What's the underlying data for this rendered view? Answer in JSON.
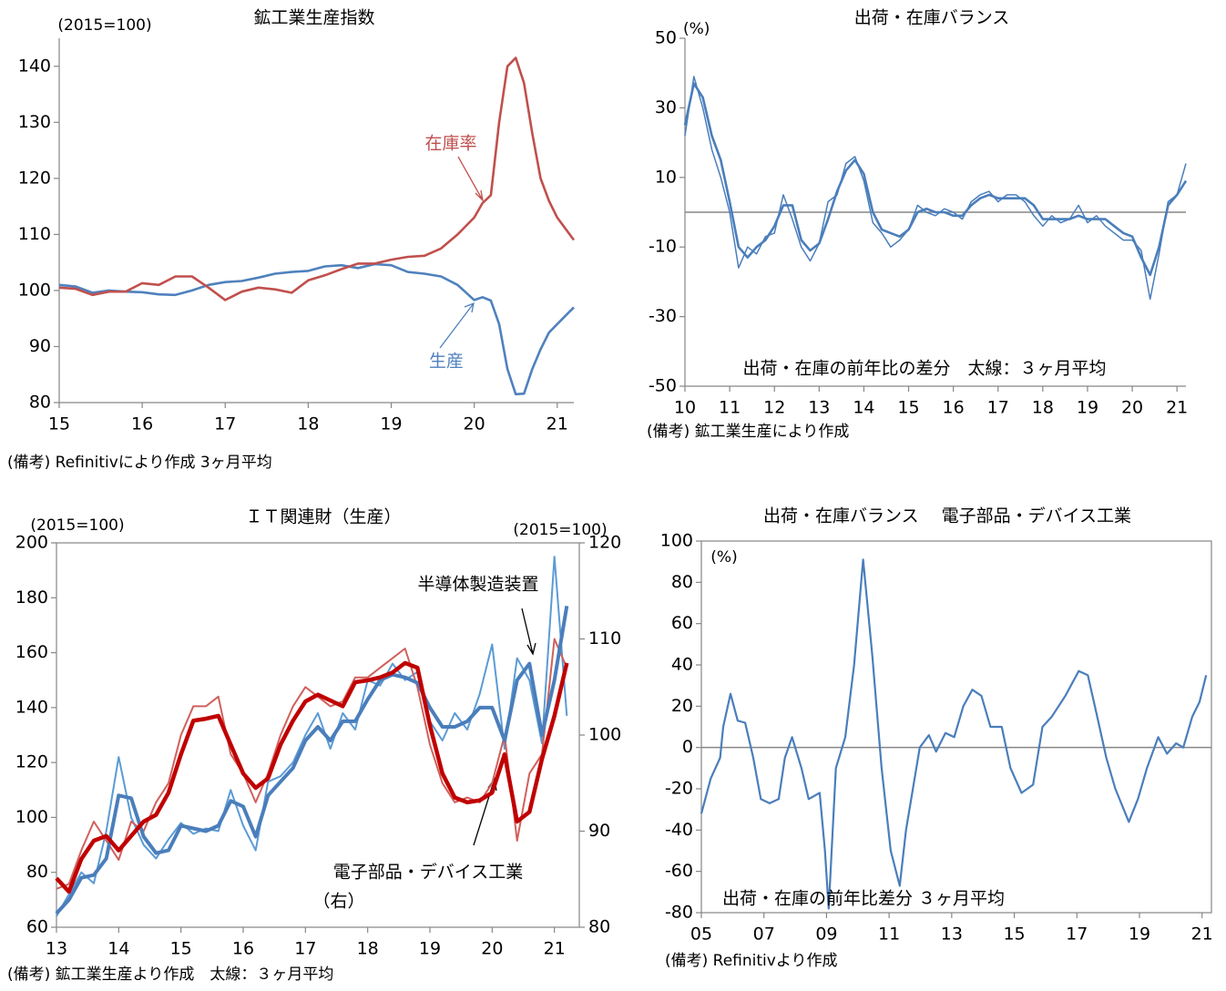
{
  "chart_data": [
    {
      "type": "line",
      "title": "鉱工業生産指数",
      "y_unit_label": "(2015=100)",
      "note": "(備考) Refinitivにより作成 3ヶ月平均",
      "annotations": [
        "在庫率",
        "生産"
      ],
      "frame": false,
      "zero_line": false,
      "x": [
        15.0,
        15.2,
        15.4,
        15.6,
        15.8,
        16.0,
        16.2,
        16.4,
        16.6,
        16.8,
        17.0,
        17.2,
        17.4,
        17.6,
        17.8,
        18.0,
        18.2,
        18.4,
        18.6,
        18.8,
        19.0,
        19.2,
        19.4,
        19.6,
        19.8,
        20.0,
        20.1,
        20.2,
        20.3,
        20.4,
        20.5,
        20.6,
        20.7,
        20.8,
        20.9,
        21.0,
        21.1,
        21.2
      ],
      "series": [
        {
          "color": "#4f81bd",
          "values": [
            101,
            100.7,
            99.6,
            100,
            99.8,
            99.7,
            99.3,
            99.2,
            100,
            101,
            101.5,
            101.7,
            102.3,
            103,
            103.3,
            103.5,
            104.3,
            104.5,
            104,
            104.7,
            104.5,
            103.3,
            103,
            102.5,
            101,
            98.3,
            98.8,
            98.2,
            94,
            86,
            81.5,
            81.6,
            86,
            89.5,
            92.5,
            94,
            95.5,
            97
          ]
        },
        {
          "color": "#c0504d",
          "values": [
            100.5,
            100.3,
            99.2,
            99.8,
            99.8,
            101.3,
            101,
            102.5,
            102.5,
            100.5,
            98.3,
            99.8,
            100.5,
            100.2,
            99.6,
            101.8,
            102.7,
            103.8,
            104.8,
            104.8,
            105.5,
            106,
            106.2,
            107.5,
            110,
            113,
            115.6,
            117,
            130,
            140,
            141.5,
            137,
            128,
            120,
            116,
            113,
            111,
            109
          ]
        }
      ],
      "xlim": [
        15,
        21.2
      ],
      "xticks": [
        15,
        16,
        17,
        18,
        19,
        20,
        21
      ],
      "ylim": [
        80,
        145
      ],
      "yticks": [
        80,
        90,
        100,
        110,
        120,
        130,
        140
      ]
    },
    {
      "type": "line",
      "title": "出荷・在庫バランス",
      "y_unit_label": "(%)",
      "note": "(備考) 鉱工業生産により作成",
      "annotations": [
        "出荷・在庫の前年比の差分　太線：３ヶ月平均"
      ],
      "frame": false,
      "zero_line": true,
      "x": [
        10.0,
        10.2,
        10.4,
        10.6,
        10.8,
        11.0,
        11.2,
        11.4,
        11.6,
        11.8,
        12.0,
        12.2,
        12.4,
        12.6,
        12.8,
        13.0,
        13.2,
        13.4,
        13.6,
        13.8,
        14.0,
        14.2,
        14.4,
        14.6,
        14.8,
        15.0,
        15.2,
        15.4,
        15.6,
        15.8,
        16.0,
        16.2,
        16.4,
        16.6,
        16.8,
        17.0,
        17.2,
        17.4,
        17.6,
        17.8,
        18.0,
        18.2,
        18.4,
        18.6,
        18.8,
        19.0,
        19.2,
        19.4,
        19.6,
        19.8,
        20.0,
        20.2,
        20.4,
        20.6,
        20.8,
        21.0,
        21.2
      ],
      "series": [
        {
          "color": "#4a7ebb",
          "values": [
            22,
            39,
            30,
            18,
            10,
            0,
            -16,
            -10,
            -12,
            -7,
            -6,
            5,
            -2,
            -10,
            -14,
            -9,
            3,
            5,
            14,
            16,
            9,
            -3,
            -6,
            -10,
            -8,
            -5,
            2,
            0,
            -1,
            1,
            0,
            -2,
            3,
            5,
            6,
            3,
            5,
            5,
            3,
            -1,
            -4,
            -1,
            -3,
            -2,
            2,
            -3,
            -1,
            -4,
            -6,
            -8,
            -8,
            -11,
            -25,
            -12,
            3,
            5,
            14
          ]
        },
        {
          "color": "#4a7ebb",
          "values": [
            25,
            37,
            33,
            22,
            15,
            3,
            -10,
            -13,
            -10,
            -8,
            -4,
            2,
            2,
            -8,
            -11,
            -9,
            -2,
            6,
            12,
            15,
            11,
            0,
            -5,
            -6,
            -7,
            -5,
            0,
            1,
            0,
            0,
            -1,
            -1,
            2,
            4,
            5,
            4,
            4,
            4,
            4,
            2,
            -2,
            -2,
            -2,
            -2,
            -1,
            -2,
            -2,
            -2,
            -4,
            -6,
            -7,
            -13,
            -18,
            -10,
            2,
            5,
            9
          ]
        }
      ],
      "xlim": [
        10,
        21.2
      ],
      "xticks": [
        10,
        11,
        12,
        13,
        14,
        15,
        16,
        17,
        18,
        19,
        20,
        21
      ],
      "ylim": [
        -50,
        50
      ],
      "yticks": [
        -50,
        -30,
        -10,
        10,
        30,
        50
      ]
    },
    {
      "type": "line",
      "title": "ＩＴ関連財（生産）",
      "y_unit_label": "(2015=100)",
      "y2_unit_label": "(2015=100)",
      "note": "(備考) 鉱工業生産より作成　太線：３ヶ月平均",
      "annotations": [
        "半導体製造装置",
        "電子部品・デバイス工業",
        "（右）"
      ],
      "frame": true,
      "zero_line": false,
      "x": [
        13.0,
        13.2,
        13.4,
        13.6,
        13.8,
        14.0,
        14.2,
        14.4,
        14.6,
        14.8,
        15.0,
        15.2,
        15.4,
        15.6,
        15.8,
        16.0,
        16.2,
        16.4,
        16.6,
        16.8,
        17.0,
        17.2,
        17.4,
        17.6,
        17.8,
        18.0,
        18.2,
        18.4,
        18.6,
        18.8,
        19.0,
        19.2,
        19.4,
        19.6,
        19.8,
        20.0,
        20.2,
        20.4,
        20.6,
        20.8,
        21.0,
        21.2
      ],
      "series": [
        {
          "color": "#5b9bd5",
          "values": [
            64,
            72,
            80,
            76,
            95,
            122,
            100,
            90,
            85,
            92,
            98,
            94,
            96,
            95,
            110,
            97,
            88,
            113,
            115,
            120,
            130,
            138,
            125,
            138,
            132,
            150,
            148,
            156,
            150,
            153,
            135,
            128,
            138,
            132,
            145,
            163,
            125,
            158,
            150,
            127,
            195,
            137
          ]
        },
        {
          "color": "#d0605c",
          "axis": "y2",
          "values": [
            84,
            84.5,
            88,
            91,
            89,
            87,
            91,
            90,
            93,
            95,
            100,
            103,
            103,
            104,
            98,
            96,
            93,
            96,
            100,
            103,
            105,
            104,
            103,
            103.5,
            106,
            106,
            107,
            108,
            109,
            105,
            99,
            95,
            93,
            93.5,
            93,
            95,
            100,
            89,
            96,
            98,
            110,
            107
          ]
        },
        {
          "color": "#4a7ebb",
          "values": [
            65,
            70,
            78,
            79,
            85,
            108,
            107,
            93,
            87,
            88,
            97,
            96,
            95,
            97,
            106,
            104,
            93,
            108,
            113,
            118,
            128,
            133,
            128,
            135,
            135,
            143,
            150,
            152,
            151,
            149,
            140,
            133,
            133,
            135,
            140,
            140,
            128,
            150,
            156,
            130,
            150,
            177
          ]
        },
        {
          "color": "#c00000",
          "axis": "y2",
          "values": [
            85.1,
            83.7,
            87.1,
            89,
            89.5,
            88,
            89.5,
            91,
            91.7,
            94,
            98,
            101.5,
            101.7,
            102,
            99,
            96,
            94.5,
            95.5,
            99,
            101.5,
            103.5,
            104.2,
            103.6,
            103,
            105.5,
            105.7,
            106,
            106.5,
            107.5,
            107,
            101,
            96,
            93.5,
            93,
            93.2,
            94,
            98,
            91,
            92,
            97.5,
            102,
            107.5
          ]
        }
      ],
      "xlim": [
        13,
        21.4
      ],
      "xticks": [
        13,
        14,
        15,
        16,
        17,
        18,
        19,
        20,
        21
      ],
      "ylim": [
        60,
        200
      ],
      "yticks": [
        60,
        80,
        100,
        120,
        140,
        160,
        180,
        200
      ],
      "y2lim": [
        80,
        120
      ],
      "y2ticks": [
        80,
        90,
        100,
        110,
        120
      ]
    },
    {
      "type": "line",
      "title": "出荷・在庫バランス　 電子部品・デバイス工業",
      "y_unit_label": "(%)",
      "note": "(備考) Refinitivより作成",
      "annotations": [
        "出荷・在庫の前年比差分 ３ヶ月平均"
      ],
      "frame": true,
      "zero_line": true,
      "x": [
        5.0,
        5.3,
        5.6,
        5.7,
        5.93,
        6.16,
        6.4,
        6.66,
        6.9,
        7.18,
        7.47,
        7.67,
        7.9,
        8.2,
        8.43,
        8.78,
        8.95,
        9.07,
        9.3,
        9.6,
        9.88,
        10.17,
        10.46,
        10.76,
        11.05,
        11.34,
        11.54,
        11.98,
        12.27,
        12.5,
        12.8,
        13.08,
        13.37,
        13.66,
        13.95,
        14.24,
        14.6,
        14.88,
        15.23,
        15.6,
        15.9,
        16.2,
        16.63,
        17.06,
        17.35,
        17.65,
        17.94,
        18.23,
        18.66,
        18.95,
        19.24,
        19.6,
        19.88,
        20.17,
        20.4,
        20.69,
        20.92,
        21.13
      ],
      "series": [
        {
          "color": "#4a7ebb",
          "values": [
            -32,
            -15,
            -5,
            10,
            26,
            13,
            12,
            -5,
            -25,
            -27,
            -25,
            -5,
            5,
            -10,
            -25,
            -22,
            -50,
            -78,
            -10,
            5,
            40,
            91,
            45,
            -10,
            -50,
            -67,
            -40,
            0,
            6,
            -2,
            7,
            5,
            20,
            28,
            25,
            10,
            10,
            -10,
            -22,
            -18,
            10,
            15,
            25,
            37,
            35,
            15,
            -5,
            -20,
            -36,
            -25,
            -10,
            5,
            -3,
            2,
            0,
            15,
            22,
            35
          ]
        }
      ],
      "xlim": [
        5,
        21.3
      ],
      "xticks": [
        {
          "value": 5,
          "label": "05"
        },
        {
          "value": 7,
          "label": "07"
        },
        {
          "value": 9,
          "label": "09"
        },
        11,
        13,
        15,
        17,
        19,
        21
      ],
      "ylim": [
        -80,
        100
      ],
      "yticks": [
        -80,
        -60,
        -40,
        -20,
        0,
        20,
        40,
        60,
        80,
        100
      ]
    }
  ]
}
